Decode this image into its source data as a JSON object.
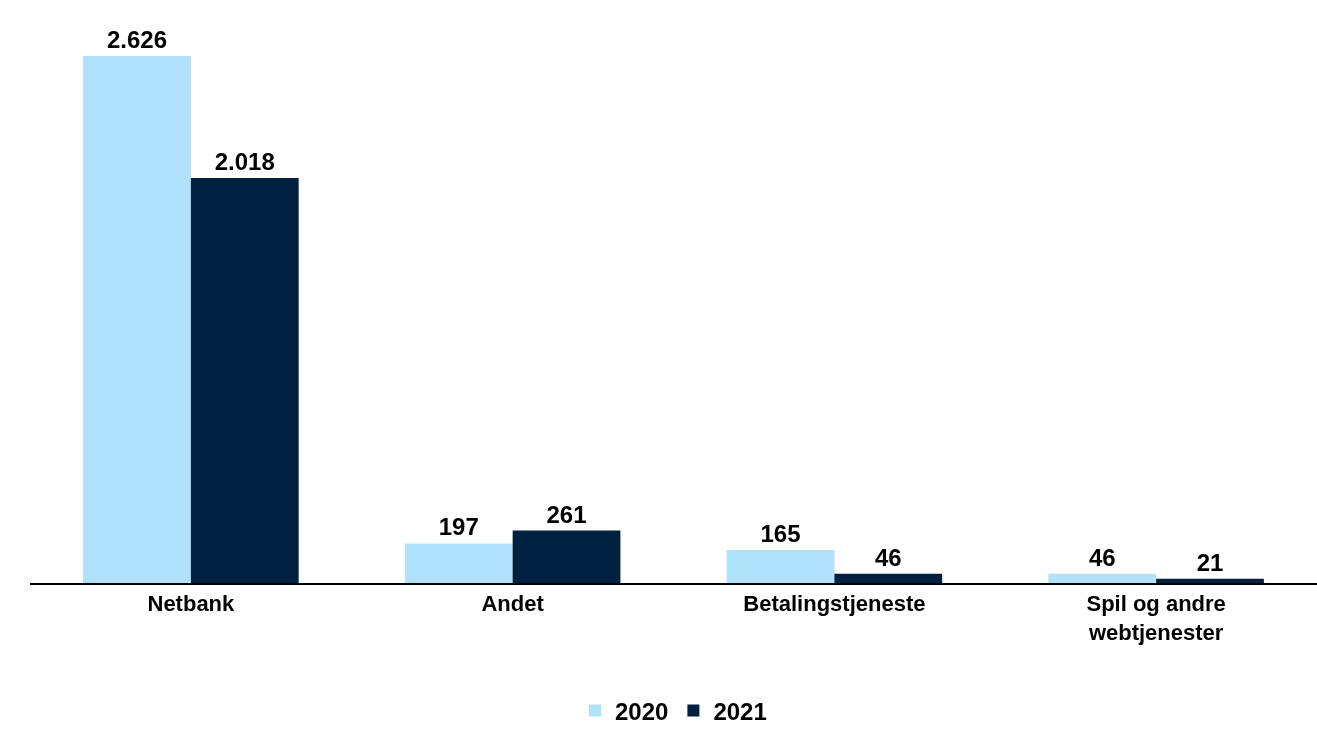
{
  "chart_data": {
    "type": "bar",
    "categories": [
      "Netbank",
      "Andet",
      "Betalingstjeneste",
      "Spil og andre webtjenester"
    ],
    "series": [
      {
        "name": "2020",
        "color": "#b0e2fb",
        "values": [
          2626,
          197,
          165,
          46
        ],
        "value_labels": [
          "2.626",
          "197",
          "165",
          "46"
        ]
      },
      {
        "name": "2021",
        "color": "#00203f",
        "values": [
          2018,
          261,
          46,
          21
        ],
        "value_labels": [
          "2.018",
          "261",
          "46",
          "21"
        ]
      }
    ],
    "legend": "bottom"
  }
}
